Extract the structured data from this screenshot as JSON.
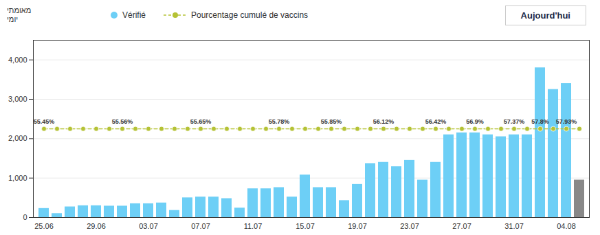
{
  "chart_data": {
    "type": "bar",
    "title": "Aujourd'hui",
    "ylabel": "מאומתי\nיומי",
    "categories": [
      "25.06",
      null,
      null,
      null,
      "29.06",
      null,
      null,
      null,
      "03.07",
      null,
      null,
      null,
      "07.07",
      null,
      null,
      null,
      "11.07",
      null,
      null,
      null,
      "15.07",
      null,
      null,
      null,
      "19.07",
      null,
      null,
      null,
      "23.07",
      null,
      null,
      null,
      "27.07",
      null,
      null,
      null,
      "31.07",
      null,
      null,
      null,
      "04.08",
      null
    ],
    "series": [
      {
        "name": "Vérifié",
        "type": "bar",
        "colors": [
          "#6DCFF6",
          "#6DCFF6",
          "#6DCFF6",
          "#6DCFF6",
          "#6DCFF6",
          "#6DCFF6",
          "#6DCFF6",
          "#6DCFF6",
          "#6DCFF6",
          "#6DCFF6",
          "#6DCFF6",
          "#6DCFF6",
          "#6DCFF6",
          "#6DCFF6",
          "#6DCFF6",
          "#6DCFF6",
          "#6DCFF6",
          "#6DCFF6",
          "#6DCFF6",
          "#6DCFF6",
          "#6DCFF6",
          "#6DCFF6",
          "#6DCFF6",
          "#6DCFF6",
          "#6DCFF6",
          "#6DCFF6",
          "#6DCFF6",
          "#6DCFF6",
          "#6DCFF6",
          "#6DCFF6",
          "#6DCFF6",
          "#6DCFF6",
          "#6DCFF6",
          "#6DCFF6",
          "#6DCFF6",
          "#6DCFF6",
          "#6DCFF6",
          "#6DCFF6",
          "#6DCFF6",
          "#6DCFF6",
          "#6DCFF6",
          "#888888"
        ],
        "values": [
          230,
          100,
          270,
          300,
          300,
          290,
          290,
          350,
          350,
          370,
          180,
          500,
          520,
          520,
          480,
          240,
          730,
          730,
          760,
          520,
          1080,
          760,
          760,
          430,
          840,
          1370,
          1400,
          1290,
          1450,
          950,
          1400,
          2100,
          2150,
          2150,
          2100,
          2050,
          2100,
          2100,
          3800,
          3250,
          3400,
          950
        ]
      },
      {
        "name": "Pourcentage cumulé de vaccins",
        "type": "line",
        "color": "#b5c235",
        "line_style": "dashed",
        "marker": "circle",
        "values": [
          2250,
          2250,
          2250,
          2250,
          2250,
          2250,
          2250,
          2250,
          2250,
          2250,
          2250,
          2250,
          2250,
          2250,
          2250,
          2250,
          2250,
          2250,
          2250,
          2250,
          2250,
          2250,
          2250,
          2250,
          2250,
          2250,
          2250,
          2250,
          2250,
          2250,
          2250,
          2250,
          2250,
          2250,
          2250,
          2250,
          2250,
          2250,
          2250,
          2250,
          2250,
          2250
        ]
      }
    ],
    "annotations": [
      {
        "x": 0,
        "y": 2250,
        "text": "55.45%"
      },
      {
        "x": 6,
        "y": 2250,
        "text": "55.56%"
      },
      {
        "x": 12,
        "y": 2250,
        "text": "55.65%"
      },
      {
        "x": 18,
        "y": 2250,
        "text": "55.78%"
      },
      {
        "x": 22,
        "y": 2250,
        "text": "55.85%"
      },
      {
        "x": 26,
        "y": 2250,
        "text": "56.12%"
      },
      {
        "x": 30,
        "y": 2250,
        "text": "56.42%"
      },
      {
        "x": 33,
        "y": 2250,
        "text": "56.9%"
      },
      {
        "x": 36,
        "y": 2250,
        "text": "57.37%"
      },
      {
        "x": 38,
        "y": 2250,
        "text": "57.8%"
      },
      {
        "x": 40,
        "y": 2250,
        "text": "57.93%"
      }
    ],
    "ylim": [
      0,
      4500
    ],
    "yticks": [
      0,
      {
        "value": 1000,
        "label": "1,000"
      },
      {
        "value": 2000,
        "label": "2,000"
      },
      {
        "value": 3000,
        "label": "3,000"
      },
      {
        "value": 4000,
        "label": "4,000"
      }
    ],
    "grid": true,
    "legend": "top"
  }
}
